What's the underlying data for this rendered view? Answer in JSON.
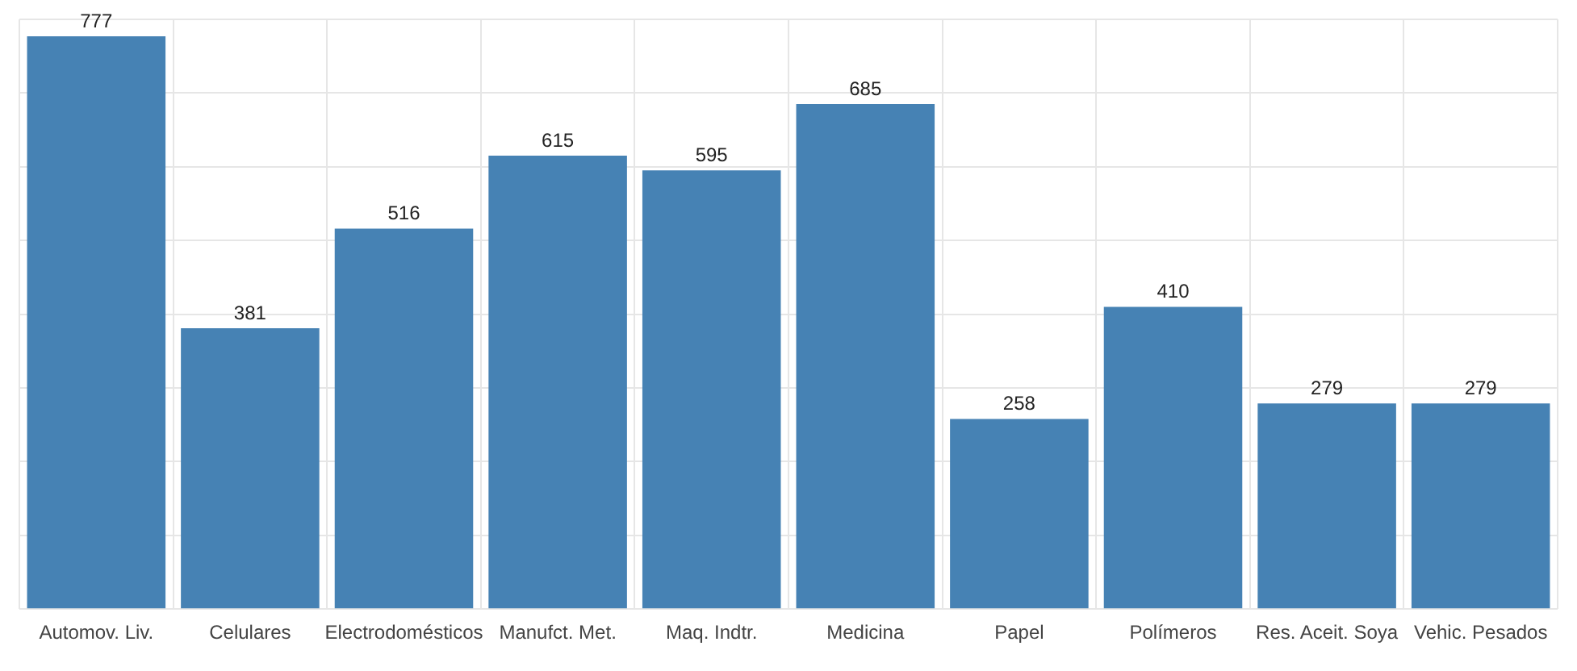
{
  "chart_data": {
    "type": "bar",
    "categories": [
      "Automov. Liv.",
      "Celulares",
      "Electrodomésticos",
      "Manufct. Met.",
      "Maq. Indtr.",
      "Medicina",
      "Papel",
      "Polímeros",
      "Res. Aceit. Soya",
      "Vehic. Pesados"
    ],
    "values": [
      777,
      381,
      516,
      615,
      595,
      685,
      258,
      410,
      279,
      279
    ],
    "color": "#4682b4",
    "data_labels": true,
    "grid": true,
    "tick_labels": "x",
    "ylim": [
      0,
      800
    ],
    "yticks": [
      {
        "value": 0,
        "label": null
      },
      {
        "value": 100,
        "label": null
      },
      {
        "value": 200,
        "label": null
      },
      {
        "value": 300,
        "label": null
      },
      {
        "value": 400,
        "label": null
      },
      {
        "value": 500,
        "label": null
      },
      {
        "value": 600,
        "label": null
      },
      {
        "value": 700,
        "label": null
      },
      {
        "value": 800,
        "label": null
      }
    ]
  }
}
